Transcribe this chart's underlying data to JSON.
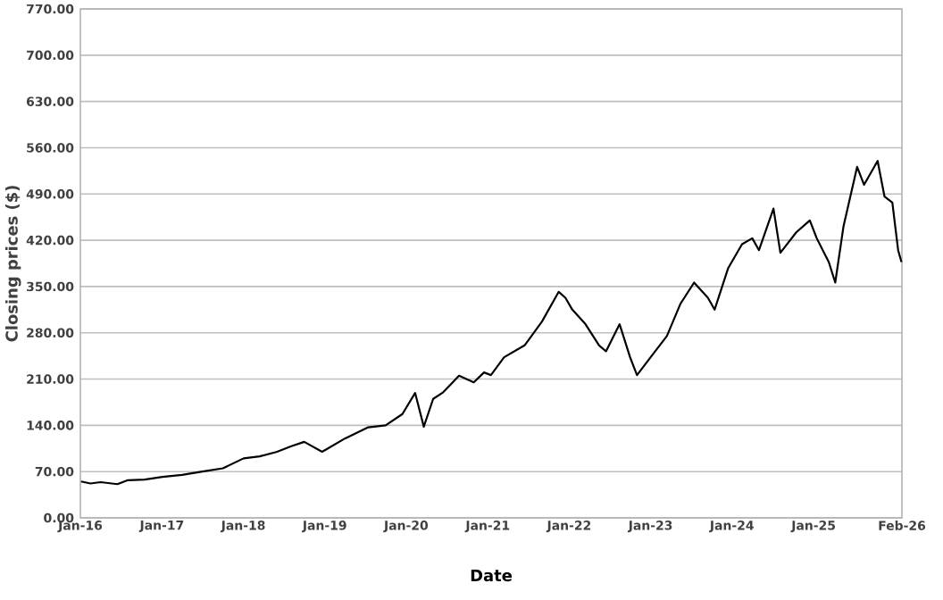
{
  "chart_data": {
    "type": "line",
    "xlabel": "Date",
    "ylabel": "Closing prices ($)",
    "x": [
      "2016-01-04",
      "2016-02-15",
      "2016-04-01",
      "2016-06-15",
      "2016-08-01",
      "2016-10-15",
      "2017-01-03",
      "2017-04-01",
      "2017-07-01",
      "2017-10-01",
      "2018-01-02",
      "2018-03-15",
      "2018-06-01",
      "2018-08-01",
      "2018-10-01",
      "2018-12-20",
      "2019-01-15",
      "2019-04-01",
      "2019-07-15",
      "2019-10-01",
      "2019-12-15",
      "2020-02-10",
      "2020-03-20",
      "2020-05-01",
      "2020-06-15",
      "2020-08-25",
      "2020-10-30",
      "2020-12-15",
      "2021-01-15",
      "2021-03-15",
      "2021-06-15",
      "2021-09-01",
      "2021-11-15",
      "2021-12-15",
      "2022-01-15",
      "2022-03-15",
      "2022-05-15",
      "2022-06-15",
      "2022-08-15",
      "2022-10-01",
      "2022-11-01",
      "2023-01-01",
      "2023-03-15",
      "2023-05-15",
      "2023-07-15",
      "2023-09-15",
      "2023-10-15",
      "2023-12-15",
      "2024-02-15",
      "2024-04-01",
      "2024-05-01",
      "2024-07-05",
      "2024-08-05",
      "2024-10-15",
      "2024-12-15",
      "2025-01-15",
      "2025-03-10",
      "2025-04-08",
      "2025-05-15",
      "2025-07-15",
      "2025-08-15",
      "2025-10-15",
      "2025-11-15",
      "2025-12-20",
      "2026-01-15",
      "2026-01-30"
    ],
    "series": [
      {
        "color": "#000000",
        "values": [
          55,
          52,
          54,
          51,
          57,
          58,
          62,
          65,
          70,
          75,
          90,
          93,
          100,
          108,
          115,
          100,
          105,
          120,
          137,
          140,
          157,
          189,
          138,
          180,
          190,
          215,
          205,
          220,
          216,
          243,
          261,
          297,
          342,
          333,
          315,
          293,
          261,
          252,
          293,
          243,
          216,
          243,
          275,
          324,
          356,
          333,
          315,
          378,
          414,
          423,
          405,
          468,
          401,
          432,
          450,
          423,
          387,
          356,
          441,
          531,
          504,
          540,
          486,
          477,
          405,
          387
        ]
      }
    ],
    "xlim": [
      "2016-01-01",
      "2026-02-01"
    ],
    "xticks": [
      {
        "value": "2016-01-01",
        "label": "Jan-16"
      },
      {
        "value": "2017-01-01",
        "label": "Jan-17"
      },
      {
        "value": "2018-01-01",
        "label": "Jan-18"
      },
      {
        "value": "2019-01-01",
        "label": "Jan-19"
      },
      {
        "value": "2020-01-01",
        "label": "Jan-20"
      },
      {
        "value": "2021-01-01",
        "label": "Jan-21"
      },
      {
        "value": "2022-01-01",
        "label": "Jan-22"
      },
      {
        "value": "2023-01-01",
        "label": "Jan-23"
      },
      {
        "value": "2024-01-01",
        "label": "Jan-24"
      },
      {
        "value": "2025-01-01",
        "label": "Jan-25"
      },
      {
        "value": "2026-02-01",
        "label": "Feb-26"
      }
    ],
    "ylim": [
      0,
      770
    ],
    "yticks": [
      {
        "value": 0,
        "label": "0.00"
      },
      {
        "value": 70,
        "label": "70.00"
      },
      {
        "value": 140,
        "label": "140.00"
      },
      {
        "value": 210,
        "label": "210.00"
      },
      {
        "value": 280,
        "label": "280.00"
      },
      {
        "value": 350,
        "label": "350.00"
      },
      {
        "value": 420,
        "label": "420.00"
      },
      {
        "value": 490,
        "label": "490.00"
      },
      {
        "value": 560,
        "label": "560.00"
      },
      {
        "value": 630,
        "label": "630.00"
      },
      {
        "value": 700,
        "label": "700.00"
      },
      {
        "value": 770,
        "label": "770.00"
      }
    ],
    "grid": "y",
    "marker": "none",
    "line_style": "solid"
  }
}
